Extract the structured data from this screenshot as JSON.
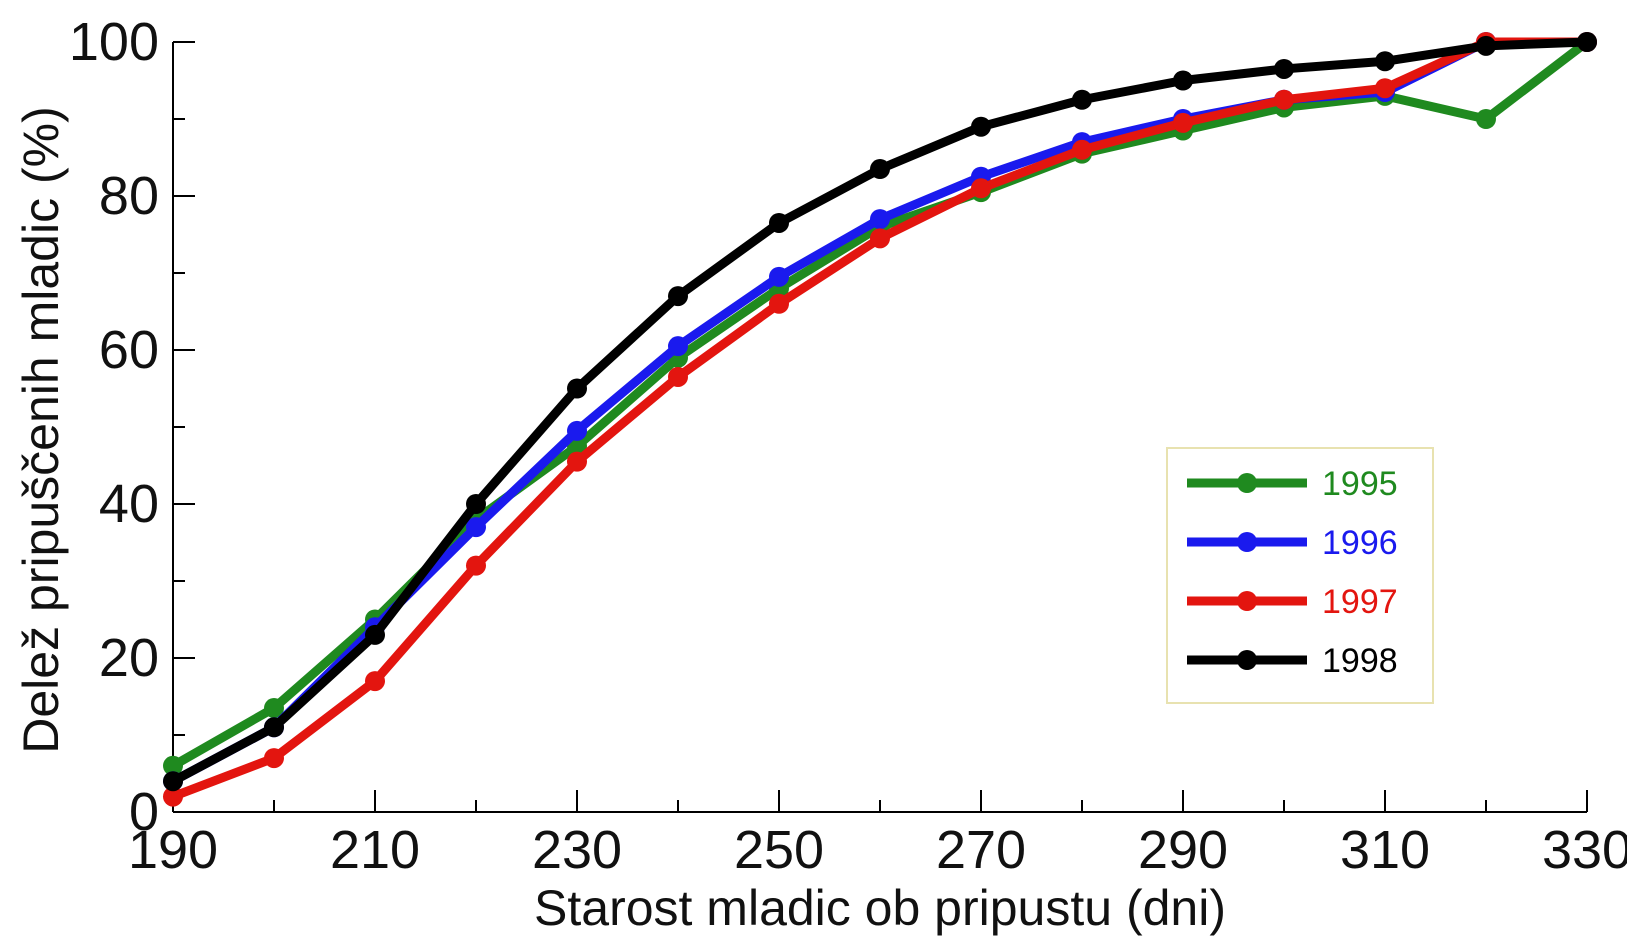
{
  "chart_data": {
    "type": "line",
    "title": "",
    "xlabel": "Starost mladic ob pripustu (dni)",
    "ylabel": "Delež pripuščenih mladic (%)",
    "xlim": [
      190,
      330
    ],
    "ylim": [
      0,
      100
    ],
    "x_ticks": [
      190,
      210,
      230,
      250,
      270,
      290,
      310,
      330
    ],
    "y_ticks": [
      0,
      20,
      40,
      60,
      80,
      100
    ],
    "y_minor_step": 10,
    "x_minor_step": 10,
    "grid": false,
    "legend_position": "right-lower",
    "x": [
      190,
      200,
      210,
      220,
      230,
      240,
      250,
      260,
      270,
      280,
      290,
      300,
      310,
      320,
      330
    ],
    "series": [
      {
        "name": "1995",
        "color": "#1f8a1f",
        "values": [
          6,
          13.5,
          25,
          38,
          47.5,
          59,
          68,
          76,
          80.5,
          85.5,
          88.5,
          91.5,
          93,
          90,
          100
        ]
      },
      {
        "name": "1996",
        "color": "#1a1aee",
        "values": [
          4,
          11,
          24,
          37,
          49.5,
          60.5,
          69.5,
          77,
          82.5,
          87,
          90,
          92.5,
          93.5,
          100,
          100
        ]
      },
      {
        "name": "1997",
        "color": "#e3150f",
        "values": [
          2,
          7,
          17,
          32,
          45.5,
          56.5,
          66,
          74.5,
          81,
          86,
          89.5,
          92.5,
          94,
          100,
          100
        ]
      },
      {
        "name": "1998",
        "color": "#000000",
        "values": [
          4,
          11,
          23,
          40,
          55,
          67,
          76.5,
          83.5,
          89,
          92.5,
          95,
          96.5,
          97.5,
          99.5,
          100
        ]
      }
    ]
  }
}
